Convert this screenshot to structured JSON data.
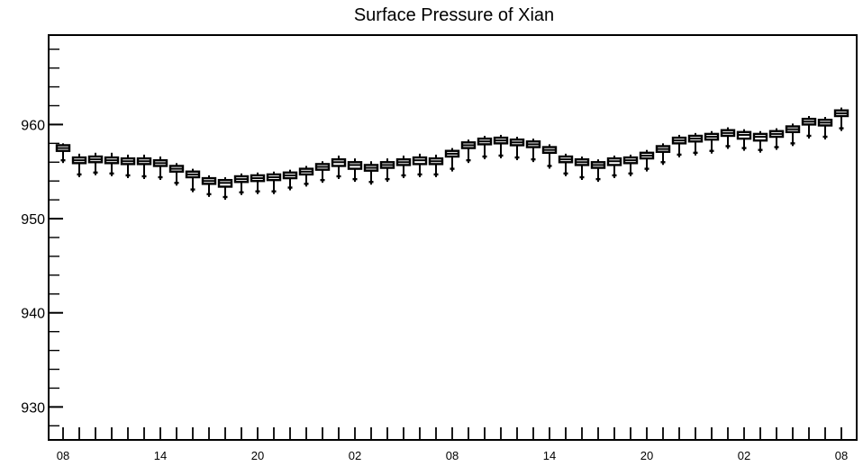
{
  "chart_data": {
    "type": "boxplot",
    "title": "Surface Pressure of Xian",
    "xlabel": "",
    "ylabel": "",
    "ylim": [
      926.5,
      969.5
    ],
    "yticks_major": [
      930,
      940,
      950,
      960
    ],
    "y_minor_step": 2,
    "grid": false,
    "x_tick_labels": [
      "08",
      "14",
      "20",
      "02",
      "08",
      "14",
      "20",
      "02",
      "08"
    ],
    "x_tick_label_steps": [
      0,
      6,
      12,
      18,
      24,
      30,
      36,
      42,
      48
    ],
    "median": [
      957.5,
      956.2,
      956.3,
      956.2,
      956.1,
      956.1,
      955.9,
      955.3,
      954.7,
      954.0,
      953.8,
      954.2,
      954.3,
      954.4,
      954.6,
      955.0,
      955.5,
      956.0,
      955.7,
      955.4,
      955.7,
      956.0,
      956.2,
      956.1,
      956.9,
      957.8,
      958.2,
      958.3,
      958.1,
      957.9,
      957.3,
      956.3,
      956.0,
      955.7,
      956.1,
      956.2,
      956.7,
      957.4,
      958.3,
      958.5,
      958.7,
      959.1,
      958.9,
      958.7,
      959.0,
      959.5,
      960.3,
      960.2,
      961.2
    ],
    "box_low": [
      957.2,
      955.9,
      956.0,
      955.9,
      955.8,
      955.8,
      955.6,
      955.0,
      954.4,
      953.7,
      953.4,
      953.9,
      954.0,
      954.1,
      954.3,
      954.7,
      955.2,
      955.6,
      955.3,
      955.1,
      955.4,
      955.7,
      955.8,
      955.8,
      956.6,
      957.5,
      957.9,
      958.0,
      957.8,
      957.6,
      957.0,
      956.0,
      955.7,
      955.4,
      955.7,
      955.9,
      956.4,
      957.1,
      958.0,
      958.2,
      958.4,
      958.8,
      958.5,
      958.3,
      958.7,
      959.2,
      960.0,
      959.9,
      960.9
    ],
    "box_high": [
      957.8,
      956.5,
      956.6,
      956.5,
      956.4,
      956.4,
      956.2,
      955.6,
      955.0,
      954.3,
      954.1,
      954.5,
      954.6,
      954.7,
      954.9,
      955.3,
      955.8,
      956.3,
      956.0,
      955.7,
      956.0,
      956.3,
      956.5,
      956.4,
      957.2,
      958.1,
      958.5,
      958.6,
      958.4,
      958.2,
      957.6,
      956.6,
      956.3,
      956.0,
      956.4,
      956.5,
      957.0,
      957.7,
      958.6,
      958.8,
      959.0,
      959.4,
      959.2,
      959.0,
      959.3,
      959.8,
      960.6,
      960.5,
      961.5
    ],
    "whisker_low": [
      956.2,
      954.7,
      954.9,
      954.8,
      954.6,
      954.5,
      954.4,
      953.8,
      953.1,
      952.6,
      952.3,
      952.8,
      952.9,
      952.9,
      953.3,
      953.7,
      954.1,
      954.5,
      954.2,
      953.9,
      954.2,
      954.6,
      954.7,
      954.7,
      955.3,
      956.2,
      956.6,
      956.7,
      956.5,
      956.3,
      955.6,
      954.8,
      954.4,
      954.2,
      954.6,
      954.8,
      955.3,
      956.0,
      956.8,
      957.0,
      957.2,
      957.7,
      957.5,
      957.3,
      957.6,
      958.0,
      958.8,
      958.7,
      959.6
    ],
    "whisker_high": [
      958.0,
      956.9,
      957.0,
      957.0,
      956.8,
      956.8,
      956.6,
      955.9,
      955.3,
      954.6,
      954.4,
      954.8,
      954.9,
      955.0,
      955.2,
      955.6,
      956.1,
      956.7,
      956.4,
      956.1,
      956.4,
      956.7,
      956.9,
      956.8,
      957.5,
      958.4,
      958.8,
      958.9,
      958.7,
      958.5,
      957.9,
      956.9,
      956.6,
      956.3,
      956.7,
      956.8,
      957.3,
      958.0,
      958.9,
      959.1,
      959.3,
      959.7,
      959.5,
      959.3,
      959.6,
      960.1,
      960.9,
      960.8,
      961.8
    ]
  }
}
